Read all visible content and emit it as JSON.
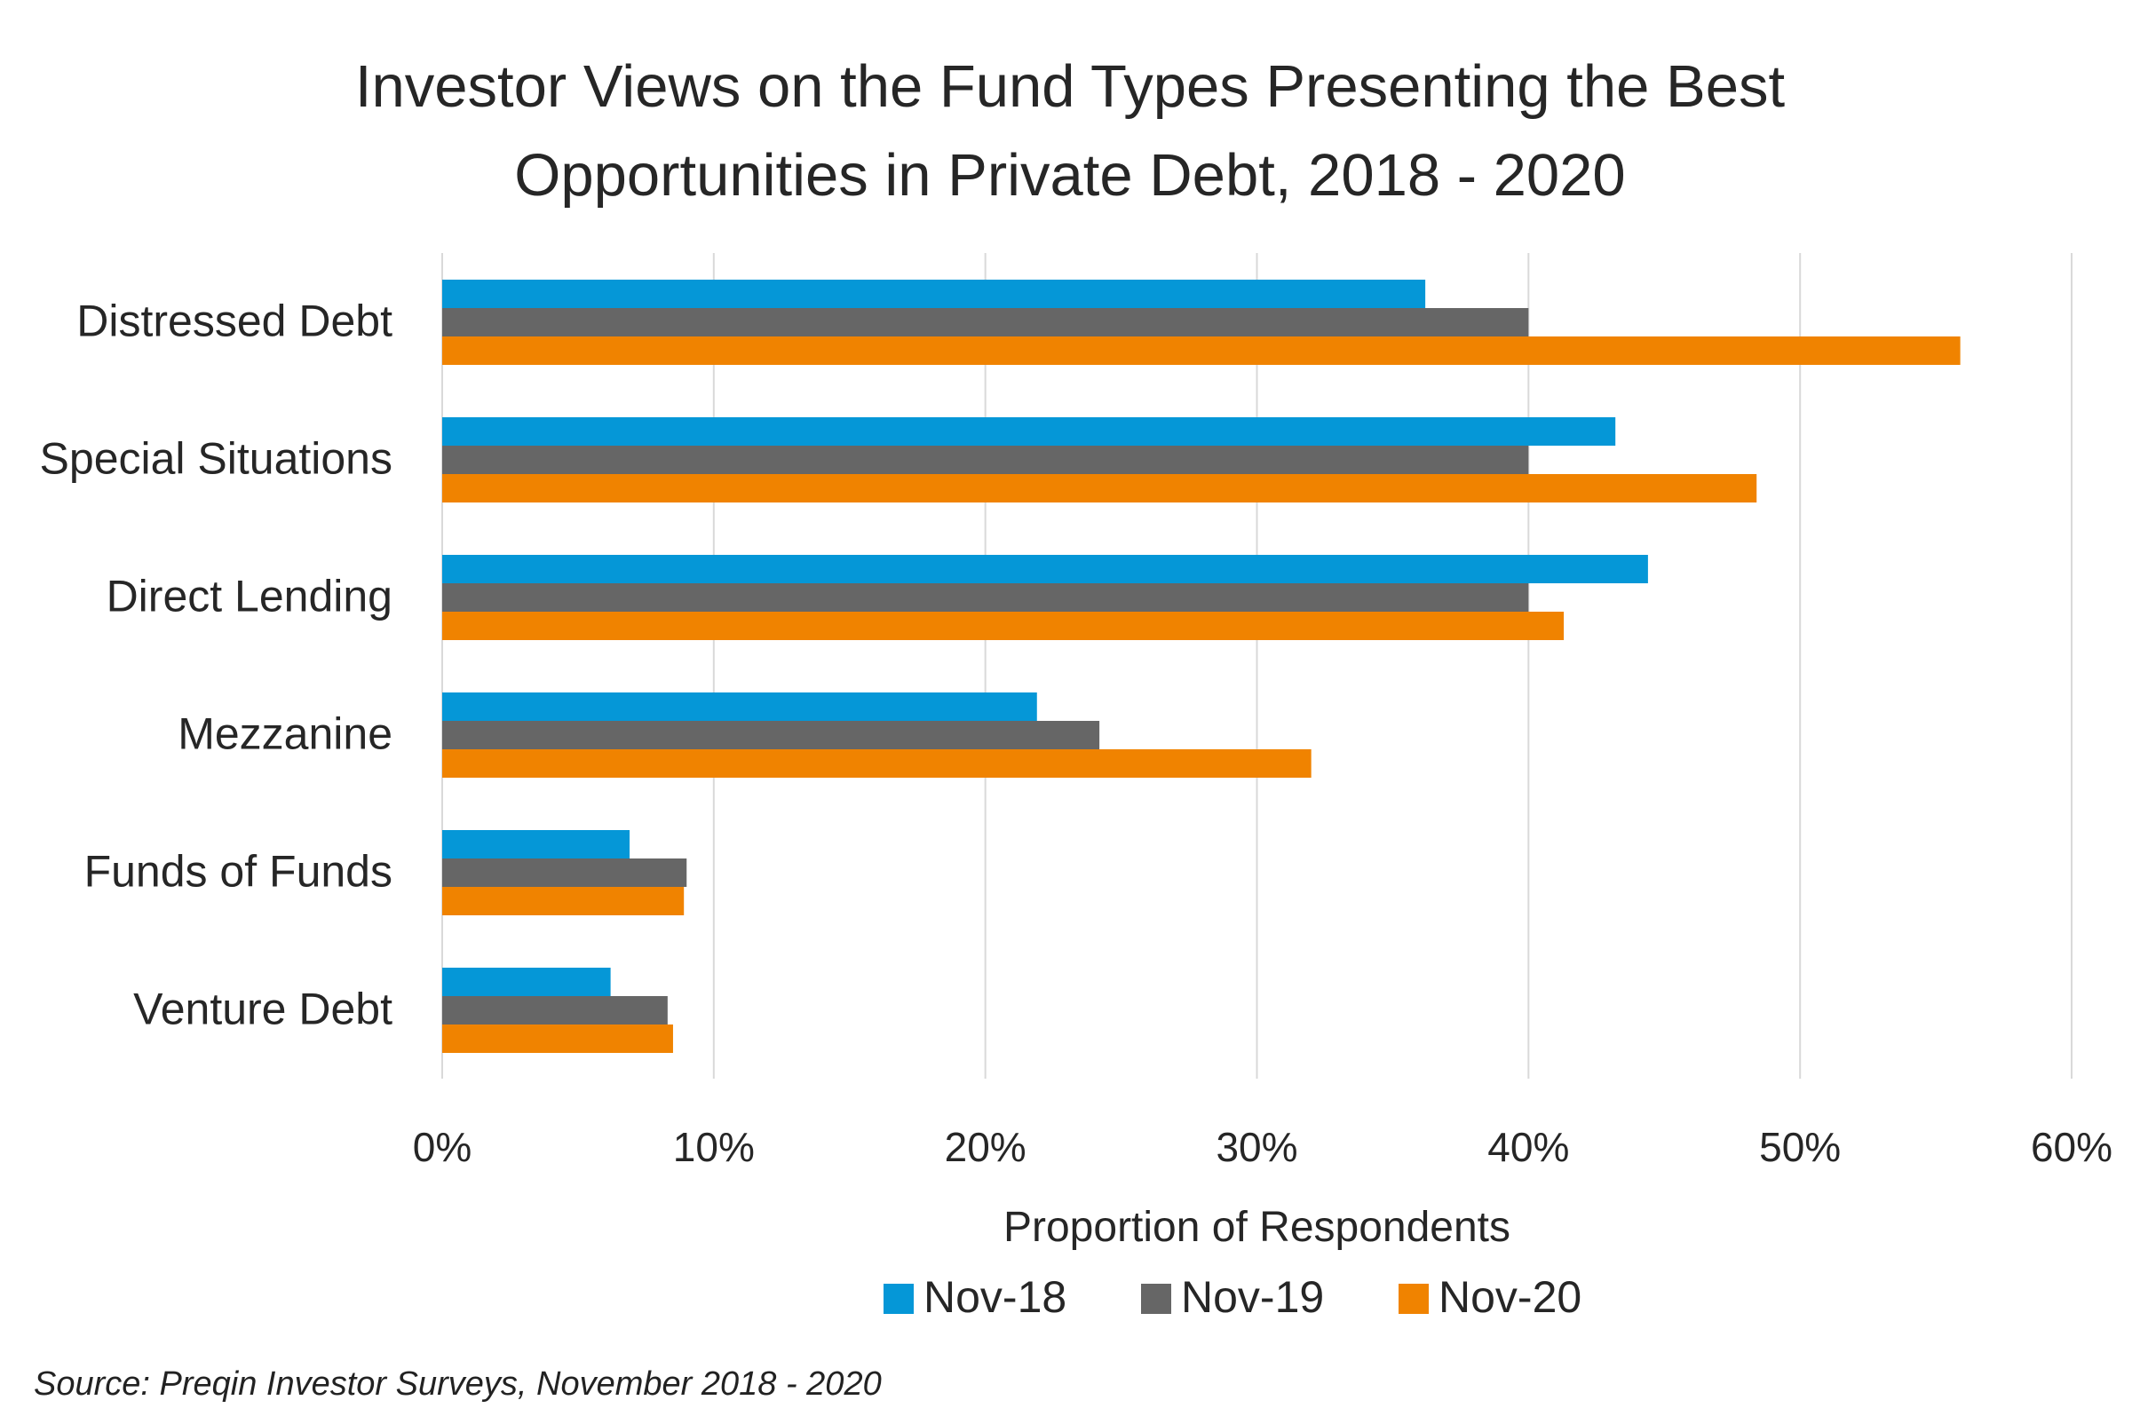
{
  "chart_data": {
    "type": "bar",
    "orientation": "horizontal",
    "title": [
      "Investor Views on the Fund Types Presenting the Best",
      "Opportunities in Private Debt, 2018 - 2020"
    ],
    "xlabel": "Proportion of Respondents",
    "ylabel": "",
    "categories": [
      "Distressed Debt",
      "Special Situations",
      "Direct Lending",
      "Mezzanine",
      "Funds of Funds",
      "Venture Debt"
    ],
    "series": [
      {
        "name": "Nov-18",
        "color": "#0597D7",
        "values": [
          36.2,
          43.2,
          44.4,
          21.9,
          6.9,
          6.2
        ]
      },
      {
        "name": "Nov-19",
        "color": "#666666",
        "values": [
          40.0,
          40.0,
          40.0,
          24.2,
          9.0,
          8.3
        ]
      },
      {
        "name": "Nov-20",
        "color": "#F08300",
        "values": [
          55.9,
          48.4,
          41.3,
          32.0,
          8.9,
          8.5
        ]
      }
    ],
    "xlim": [
      0,
      60
    ],
    "xticks": [
      "0%",
      "10%",
      "20%",
      "30%",
      "40%",
      "50%",
      "60%"
    ],
    "grid": "vertical",
    "legend": "bottom-center"
  },
  "source": "Source: Preqin Investor Surveys, November 2018 - 2020"
}
